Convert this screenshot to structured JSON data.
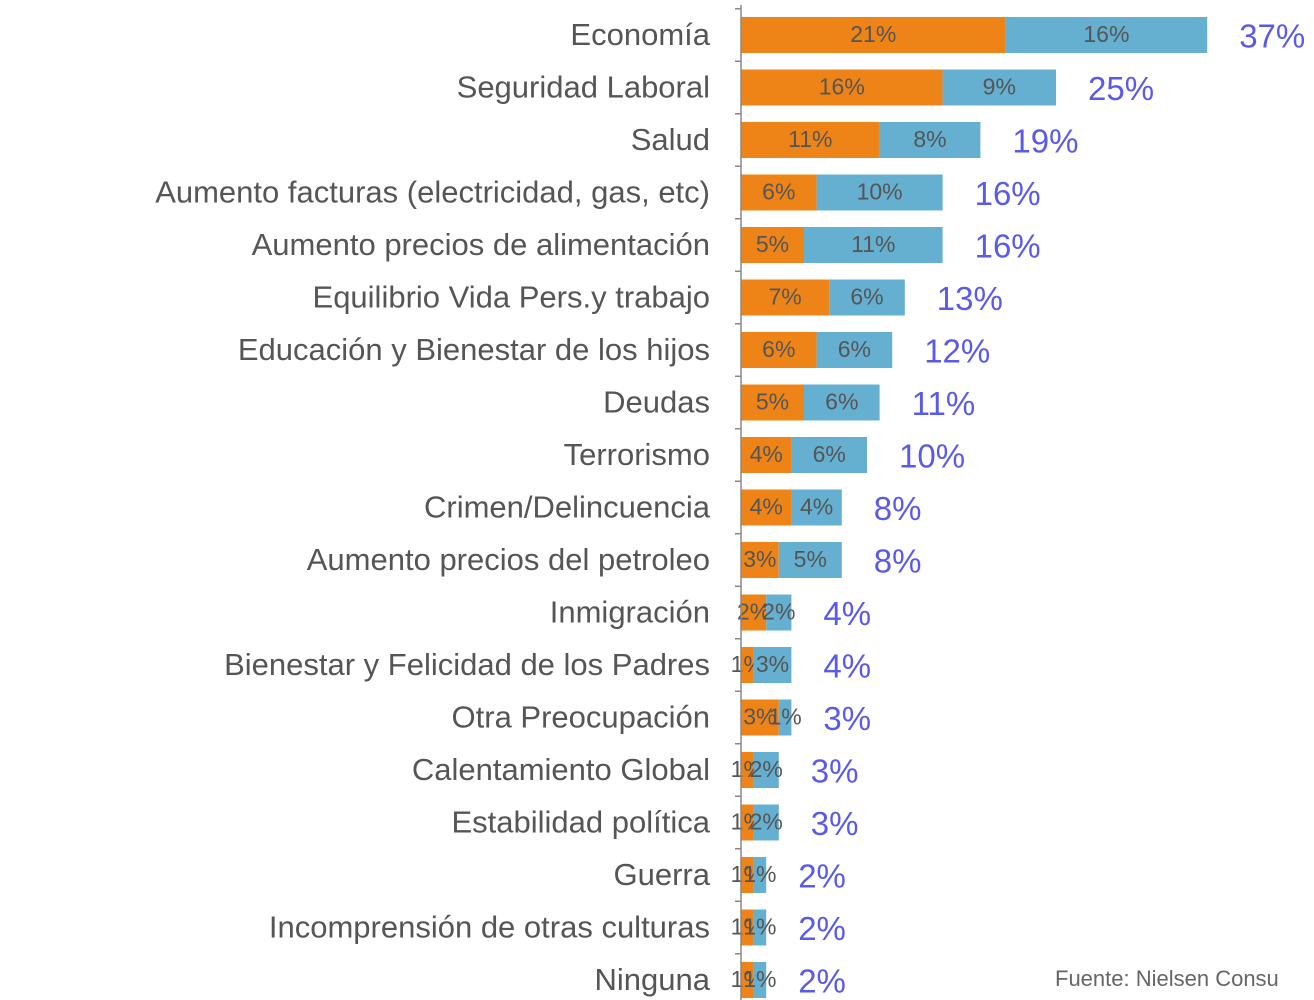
{
  "chart_data": {
    "type": "stacked-barh",
    "categories": [
      "Economía",
      "Seguridad Laboral",
      "Salud",
      "Aumento  facturas (electricidad, gas, etc)",
      "Aumento precios de alimentación",
      "Equilibrio Vida Pers.y trabajo",
      "Educación y Bienestar de los hijos",
      "Deudas",
      "Terrorismo",
      "Crimen/Delincuencia",
      "Aumento precios del petroleo",
      "Inmigración",
      "Bienestar y Felicidad de los Padres",
      "Otra Preocupación",
      "Calentamiento Global",
      "Estabilidad política",
      "Guerra",
      "Incomprensión de otras culturas",
      "Ninguna"
    ],
    "series": [
      {
        "color": "#ee8418",
        "values": [
          21,
          16,
          11,
          6,
          5,
          7,
          6,
          5,
          4,
          4,
          3,
          2,
          1,
          3,
          1,
          1,
          1,
          1,
          1
        ],
        "value_labels": [
          "21%",
          "16%",
          "11%",
          "6%",
          "5%",
          "7%",
          "6%",
          "5%",
          "4%",
          "4%",
          "3%",
          "2%",
          "1%",
          "3%",
          "1%",
          "1%",
          "1%",
          "1%",
          "1%"
        ]
      },
      {
        "color": "#65afd1",
        "values": [
          16,
          9,
          8,
          10,
          11,
          6,
          6,
          6,
          6,
          4,
          5,
          2,
          3,
          1,
          2,
          2,
          1,
          1,
          1
        ],
        "value_labels": [
          "16%",
          "9%",
          "8%",
          "10%",
          "11%",
          "6%",
          "6%",
          "6%",
          "6%",
          "4%",
          "5%",
          "2%",
          "3%",
          "1%",
          "2%",
          "2%",
          "1%",
          "1%",
          "1%"
        ]
      }
    ],
    "totals": [
      37,
      25,
      19,
      16,
      16,
      13,
      12,
      11,
      10,
      8,
      8,
      4,
      4,
      3,
      3,
      3,
      2,
      2,
      2
    ],
    "total_labels": [
      "37%",
      "25%",
      "19%",
      "16%",
      "16%",
      "13%",
      "12%",
      "11%",
      "10%",
      "8%",
      "8%",
      "4%",
      "4%",
      "3%",
      "3%",
      "3%",
      "2%",
      "2%",
      "2%"
    ],
    "total_color": "#5a5aea",
    "source": "Fuente: Nielsen Consu"
  }
}
